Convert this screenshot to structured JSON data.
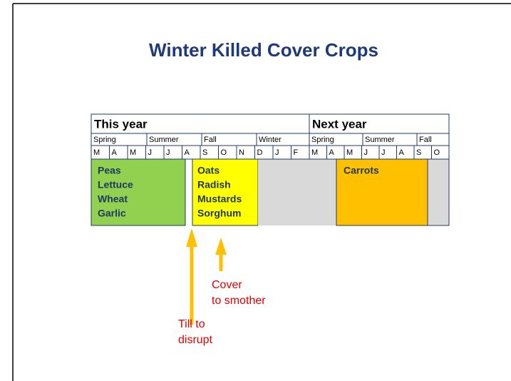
{
  "title": "Winter Killed Cover Crops",
  "header": {
    "this_year": "This year",
    "next_year": "Next year"
  },
  "seasons": [
    "Spring",
    "Summer",
    "Fall",
    "Winter",
    "Spring",
    "Summer",
    "Fall"
  ],
  "months": [
    "M",
    "A",
    "M",
    "J",
    "J",
    "A",
    "S",
    "O",
    "N",
    "D",
    "J",
    "F",
    "M",
    "A",
    "M",
    "J",
    "J",
    "A",
    "S",
    "O"
  ],
  "crops": [
    {
      "lines": [
        "Peas",
        "Lettuce",
        "Wheat",
        "Garlic"
      ]
    },
    {
      "lines": [
        "Oats",
        "Radish",
        "Mustards",
        "Sorghum"
      ]
    },
    {
      "lines": [
        "Carrots"
      ]
    }
  ],
  "annotations": [
    {
      "lines": [
        "Till to",
        "disrupt"
      ]
    },
    {
      "lines": [
        "Cover",
        "to smother"
      ]
    }
  ]
}
